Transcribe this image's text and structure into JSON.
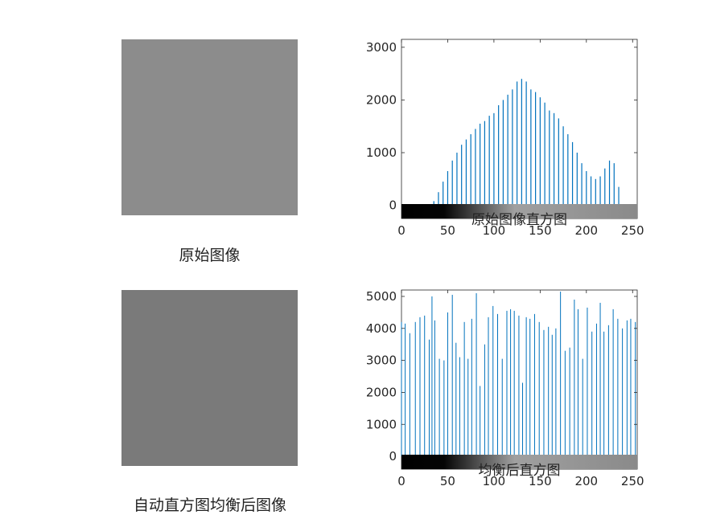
{
  "figure": {
    "image1_caption": "原始图像",
    "image2_caption": "自动直方图均衡后图像"
  },
  "colors": {
    "bar": "#0072BD",
    "axis": "#262626",
    "image_placeholder": "#8c8c8c"
  },
  "chart_data": [
    {
      "type": "bar",
      "title": "原始图像直方图",
      "xlim": [
        0,
        255
      ],
      "ylim": [
        -250,
        3150
      ],
      "xticks": [
        0,
        50,
        100,
        150,
        200,
        250
      ],
      "yticks": [
        0,
        1000,
        2000,
        3000
      ],
      "colorbar": "grayscale 0-255",
      "x": [
        30,
        35,
        40,
        45,
        50,
        55,
        60,
        65,
        70,
        75,
        80,
        85,
        90,
        95,
        100,
        105,
        110,
        115,
        120,
        125,
        130,
        135,
        140,
        145,
        150,
        155,
        160,
        165,
        170,
        175,
        180,
        185,
        190,
        195,
        200,
        205,
        210,
        215,
        220,
        225,
        230,
        235,
        240
      ],
      "values": [
        0,
        80,
        250,
        450,
        650,
        850,
        1000,
        1150,
        1250,
        1350,
        1450,
        1550,
        1600,
        1700,
        1750,
        1900,
        2000,
        2100,
        2200,
        2350,
        2400,
        2350,
        2200,
        2150,
        2050,
        1950,
        1800,
        1750,
        1650,
        1500,
        1350,
        1200,
        1000,
        800,
        650,
        550,
        500,
        550,
        700,
        850,
        800,
        350,
        0
      ]
    },
    {
      "type": "bar",
      "title": "均衡后直方图",
      "xlim": [
        0,
        255
      ],
      "ylim": [
        -400,
        5200
      ],
      "xticks": [
        0,
        50,
        100,
        150,
        200,
        250
      ],
      "yticks": [
        0,
        1000,
        2000,
        3000,
        4000,
        5000
      ],
      "colorbar": "grayscale 0-255",
      "x": [
        0,
        4,
        9,
        15,
        20,
        25,
        30,
        33,
        36,
        41,
        46,
        50,
        55,
        59,
        63,
        68,
        72,
        76,
        81,
        85,
        90,
        94,
        99,
        104,
        109,
        114,
        118,
        122,
        127,
        131,
        135,
        139,
        144,
        149,
        154,
        159,
        163,
        167,
        172,
        177,
        182,
        187,
        191,
        196,
        201,
        206,
        211,
        215,
        219,
        224,
        229,
        234,
        239,
        244,
        248,
        253
      ],
      "values": [
        4200,
        4150,
        3850,
        4200,
        4350,
        4400,
        3650,
        5000,
        4250,
        3050,
        3000,
        4500,
        5050,
        3550,
        3100,
        4200,
        3050,
        4300,
        5100,
        2200,
        3500,
        4350,
        4700,
        4450,
        3050,
        4550,
        4600,
        4550,
        4400,
        2300,
        4350,
        4300,
        4450,
        4200,
        3950,
        4050,
        3800,
        4000,
        5150,
        3300,
        3400,
        4900,
        4600,
        3050,
        4650,
        3900,
        4150,
        4800,
        3900,
        4100,
        4600,
        4300,
        4000,
        4250,
        4300,
        4200
      ]
    }
  ]
}
